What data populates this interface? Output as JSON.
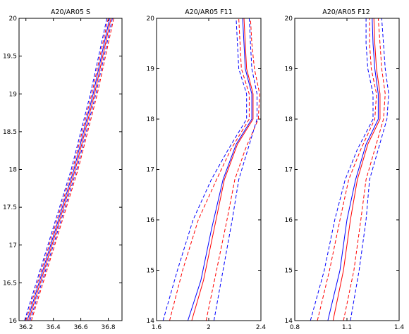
{
  "chart_data": [
    {
      "type": "line",
      "title": "A20/AR05 S",
      "xlim": [
        36.15,
        36.9
      ],
      "ylim": [
        16,
        20
      ],
      "xticks": [
        36.2,
        36.4,
        36.6,
        36.8
      ],
      "xticklabels": [
        "36.2",
        "36.4",
        "36.6",
        "36.8"
      ],
      "yticks": [
        16,
        16.5,
        17,
        17.5,
        18,
        18.5,
        19,
        19.5,
        20
      ],
      "yticklabels": [
        "16",
        "16.5",
        "17",
        "17.5",
        "18",
        "18.5",
        "19",
        "19.5",
        "20"
      ],
      "series": [
        {
          "color": "#ff0000",
          "style": "solid",
          "points": [
            [
              36.22,
              16.0
            ],
            [
              36.39,
              17.0
            ],
            [
              36.56,
              18.0
            ],
            [
              36.7,
              19.0
            ],
            [
              36.82,
              20.0
            ]
          ]
        },
        {
          "color": "#0000ff",
          "style": "solid",
          "points": [
            [
              36.21,
              16.0
            ],
            [
              36.38,
              17.0
            ],
            [
              36.55,
              18.0
            ],
            [
              36.69,
              19.0
            ],
            [
              36.81,
              20.0
            ]
          ]
        },
        {
          "color": "#ff0000",
          "style": "dashed",
          "points": [
            [
              36.2,
              16.0
            ],
            [
              36.37,
              17.0
            ],
            [
              36.54,
              18.0
            ],
            [
              36.68,
              19.0
            ],
            [
              36.8,
              20.0
            ]
          ]
        },
        {
          "color": "#ff0000",
          "style": "dashed",
          "points": [
            [
              36.24,
              16.0
            ],
            [
              36.41,
              17.0
            ],
            [
              36.58,
              18.0
            ],
            [
              36.72,
              19.0
            ],
            [
              36.84,
              20.0
            ]
          ]
        },
        {
          "color": "#0000ff",
          "style": "dashed",
          "points": [
            [
              36.19,
              16.0
            ],
            [
              36.36,
              17.0
            ],
            [
              36.53,
              18.0
            ],
            [
              36.67,
              19.0
            ],
            [
              36.79,
              20.0
            ]
          ]
        },
        {
          "color": "#0000ff",
          "style": "dashed",
          "points": [
            [
              36.23,
              16.0
            ],
            [
              36.4,
              17.0
            ],
            [
              36.57,
              18.0
            ],
            [
              36.71,
              19.0
            ],
            [
              36.83,
              20.0
            ]
          ]
        }
      ]
    },
    {
      "type": "line",
      "title": "A20/AR05 F11",
      "xlim": [
        1.6,
        2.4
      ],
      "ylim": [
        14,
        20
      ],
      "xticks": [
        1.6,
        2.0,
        2.4
      ],
      "xticklabels": [
        "1.6",
        "2",
        "2.4"
      ],
      "yticks": [
        14,
        15,
        16,
        17,
        18,
        19,
        20
      ],
      "yticklabels": [
        "14",
        "15",
        "16",
        "17",
        "18",
        "19",
        "20"
      ],
      "series": [
        {
          "color": "#ff0000",
          "style": "solid",
          "points": [
            [
              1.87,
              14.0
            ],
            [
              1.96,
              14.8
            ],
            [
              2.04,
              15.8
            ],
            [
              2.12,
              16.8
            ],
            [
              2.22,
              17.5
            ],
            [
              2.34,
              18.0
            ],
            [
              2.34,
              18.5
            ],
            [
              2.29,
              19.0
            ],
            [
              2.28,
              19.5
            ],
            [
              2.27,
              20.0
            ]
          ]
        },
        {
          "color": "#0000ff",
          "style": "solid",
          "points": [
            [
              1.84,
              14.0
            ],
            [
              1.94,
              14.8
            ],
            [
              2.02,
              15.8
            ],
            [
              2.11,
              16.8
            ],
            [
              2.21,
              17.5
            ],
            [
              2.33,
              18.0
            ],
            [
              2.33,
              18.5
            ],
            [
              2.28,
              19.0
            ],
            [
              2.27,
              19.5
            ],
            [
              2.26,
              20.0
            ]
          ]
        },
        {
          "color": "#ff0000",
          "style": "dashed",
          "points": [
            [
              1.7,
              14.0
            ],
            [
              1.8,
              15.0
            ],
            [
              1.92,
              16.0
            ],
            [
              2.06,
              16.8
            ],
            [
              2.17,
              17.4
            ],
            [
              2.31,
              18.0
            ],
            [
              2.31,
              18.5
            ],
            [
              2.25,
              19.0
            ],
            [
              2.24,
              19.5
            ],
            [
              2.23,
              20.0
            ]
          ]
        },
        {
          "color": "#ff0000",
          "style": "dashed",
          "points": [
            [
              1.98,
              14.0
            ],
            [
              2.06,
              15.0
            ],
            [
              2.14,
              16.0
            ],
            [
              2.2,
              16.8
            ],
            [
              2.28,
              17.4
            ],
            [
              2.38,
              18.0
            ],
            [
              2.39,
              18.5
            ],
            [
              2.35,
              19.0
            ],
            [
              2.33,
              19.5
            ],
            [
              2.32,
              20.0
            ]
          ]
        },
        {
          "color": "#0000ff",
          "style": "dashed",
          "points": [
            [
              1.65,
              14.0
            ],
            [
              1.76,
              15.0
            ],
            [
              1.88,
              16.0
            ],
            [
              2.02,
              16.8
            ],
            [
              2.15,
              17.4
            ],
            [
              2.29,
              18.0
            ],
            [
              2.29,
              18.5
            ],
            [
              2.23,
              19.0
            ],
            [
              2.22,
              19.5
            ],
            [
              2.21,
              20.0
            ]
          ]
        },
        {
          "color": "#0000ff",
          "style": "dashed",
          "points": [
            [
              2.04,
              14.0
            ],
            [
              2.11,
              15.0
            ],
            [
              2.18,
              16.0
            ],
            [
              2.23,
              16.8
            ],
            [
              2.3,
              17.4
            ],
            [
              2.37,
              18.0
            ],
            [
              2.37,
              18.5
            ],
            [
              2.33,
              19.0
            ],
            [
              2.32,
              19.5
            ],
            [
              2.31,
              20.0
            ]
          ]
        }
      ]
    },
    {
      "type": "line",
      "title": "A20/AR05 F12",
      "xlim": [
        0.8,
        1.4
      ],
      "ylim": [
        14,
        20
      ],
      "xticks": [
        0.8,
        1.1,
        1.4
      ],
      "xticklabels": [
        "0.8",
        "1.1",
        "1.4"
      ],
      "yticks": [
        14,
        15,
        16,
        17,
        18,
        19,
        20
      ],
      "yticklabels": [
        "14",
        "15",
        "16",
        "17",
        "18",
        "19",
        "20"
      ],
      "series": [
        {
          "color": "#ff0000",
          "style": "solid",
          "points": [
            [
              1.02,
              14.0
            ],
            [
              1.08,
              15.0
            ],
            [
              1.12,
              16.0
            ],
            [
              1.16,
              16.8
            ],
            [
              1.22,
              17.5
            ],
            [
              1.29,
              18.0
            ],
            [
              1.29,
              18.5
            ],
            [
              1.27,
              19.0
            ],
            [
              1.26,
              19.5
            ],
            [
              1.255,
              20.0
            ]
          ]
        },
        {
          "color": "#0000ff",
          "style": "solid",
          "points": [
            [
              0.99,
              14.0
            ],
            [
              1.06,
              15.0
            ],
            [
              1.1,
              16.0
            ],
            [
              1.15,
              16.8
            ],
            [
              1.21,
              17.5
            ],
            [
              1.28,
              18.0
            ],
            [
              1.28,
              18.5
            ],
            [
              1.26,
              19.0
            ],
            [
              1.25,
              19.5
            ],
            [
              1.245,
              20.0
            ]
          ]
        },
        {
          "color": "#ff0000",
          "style": "dashed",
          "points": [
            [
              0.93,
              14.0
            ],
            [
              1.0,
              15.0
            ],
            [
              1.06,
              16.0
            ],
            [
              1.11,
              16.8
            ],
            [
              1.18,
              17.4
            ],
            [
              1.26,
              18.0
            ],
            [
              1.27,
              18.5
            ],
            [
              1.24,
              19.0
            ],
            [
              1.23,
              19.5
            ],
            [
              1.23,
              20.0
            ]
          ]
        },
        {
          "color": "#ff0000",
          "style": "dashed",
          "points": [
            [
              1.08,
              14.0
            ],
            [
              1.14,
              15.0
            ],
            [
              1.18,
              16.0
            ],
            [
              1.21,
              16.8
            ],
            [
              1.26,
              17.4
            ],
            [
              1.31,
              18.0
            ],
            [
              1.32,
              18.5
            ],
            [
              1.3,
              19.0
            ],
            [
              1.29,
              19.5
            ],
            [
              1.28,
              20.0
            ]
          ]
        },
        {
          "color": "#0000ff",
          "style": "dashed",
          "points": [
            [
              0.89,
              14.0
            ],
            [
              0.97,
              15.0
            ],
            [
              1.03,
              16.0
            ],
            [
              1.09,
              16.8
            ],
            [
              1.16,
              17.4
            ],
            [
              1.25,
              18.0
            ],
            [
              1.25,
              18.5
            ],
            [
              1.22,
              19.0
            ],
            [
              1.21,
              19.5
            ],
            [
              1.21,
              20.0
            ]
          ]
        },
        {
          "color": "#0000ff",
          "style": "dashed",
          "points": [
            [
              1.12,
              14.0
            ],
            [
              1.17,
              15.0
            ],
            [
              1.21,
              16.0
            ],
            [
              1.23,
              16.8
            ],
            [
              1.28,
              17.4
            ],
            [
              1.33,
              18.0
            ],
            [
              1.34,
              18.5
            ],
            [
              1.32,
              19.0
            ],
            [
              1.31,
              19.5
            ],
            [
              1.3,
              20.0
            ]
          ]
        }
      ]
    }
  ]
}
